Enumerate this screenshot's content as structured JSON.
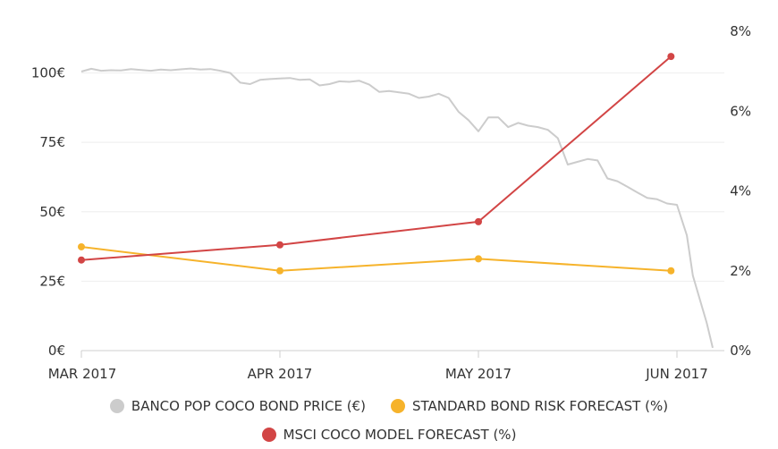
{
  "chart_data": {
    "type": "line",
    "x_labels": [
      "MAR 2017",
      "APR 2017",
      "MAY 2017",
      "JUN 2017"
    ],
    "y_left_ticks": [
      "0€",
      "25€",
      "50€",
      "75€",
      "100€"
    ],
    "y_left_range": [
      0,
      115
    ],
    "y_right_ticks": [
      "0%",
      "2%",
      "4%",
      "6%",
      "8%"
    ],
    "y_right_range": [
      0,
      8
    ],
    "grid": "horizontal",
    "legend_position": "bottom",
    "series": [
      {
        "name": "BANCO POP COCO BOND PRICE (€)",
        "color": "#cccccc",
        "axis": "left",
        "x": [
          0.0,
          0.05,
          0.1,
          0.15,
          0.2,
          0.25,
          0.3,
          0.35,
          0.4,
          0.45,
          0.5,
          0.55,
          0.6,
          0.65,
          0.7,
          0.75,
          0.8,
          0.85,
          0.9,
          0.95,
          1.0,
          1.05,
          1.1,
          1.15,
          1.2,
          1.25,
          1.3,
          1.35,
          1.4,
          1.45,
          1.5,
          1.55,
          1.6,
          1.65,
          1.7,
          1.75,
          1.8,
          1.85,
          1.9,
          1.95,
          2.0,
          2.05,
          2.1,
          2.15,
          2.2,
          2.25,
          2.3,
          2.35,
          2.4,
          2.45,
          2.5,
          2.55,
          2.6,
          2.65,
          2.7,
          2.75,
          2.8,
          2.85,
          2.9,
          2.95,
          3.0,
          3.05,
          3.08,
          3.15,
          3.18
        ],
        "values": [
          100.5,
          101.5,
          100.8,
          101.0,
          100.9,
          101.4,
          101.1,
          100.8,
          101.2,
          101.0,
          101.3,
          101.6,
          101.2,
          101.4,
          100.8,
          100.0,
          96.5,
          96.0,
          97.5,
          97.8,
          98.0,
          98.2,
          97.5,
          97.7,
          95.5,
          96.0,
          97.0,
          96.8,
          97.2,
          95.8,
          93.2,
          93.5,
          93.0,
          92.5,
          91.0,
          91.5,
          92.5,
          91.0,
          86.0,
          83.0,
          79.0,
          84.0,
          84.0,
          80.5,
          82.0,
          81.0,
          80.5,
          79.5,
          76.5,
          67.0,
          68.0,
          69.0,
          68.5,
          62.0,
          61.0,
          59.0,
          57.0,
          55.0,
          54.5,
          53.0,
          52.5,
          41.5,
          27.0,
          10.0,
          1.0
        ]
      },
      {
        "name": "STANDARD BOND RISK FORECAST (%)",
        "color": "#f6b32b",
        "axis": "right",
        "x": [
          0,
          1,
          2,
          2.97
        ],
        "values": [
          2.6,
          2.0,
          2.3,
          2.0
        ]
      },
      {
        "name": "MSCI COCO MODEL FORECAST (%)",
        "color": "#d24545",
        "axis": "right",
        "x": [
          0,
          1,
          2,
          2.97
        ],
        "values": [
          2.27,
          2.65,
          3.23,
          7.37
        ]
      }
    ]
  }
}
